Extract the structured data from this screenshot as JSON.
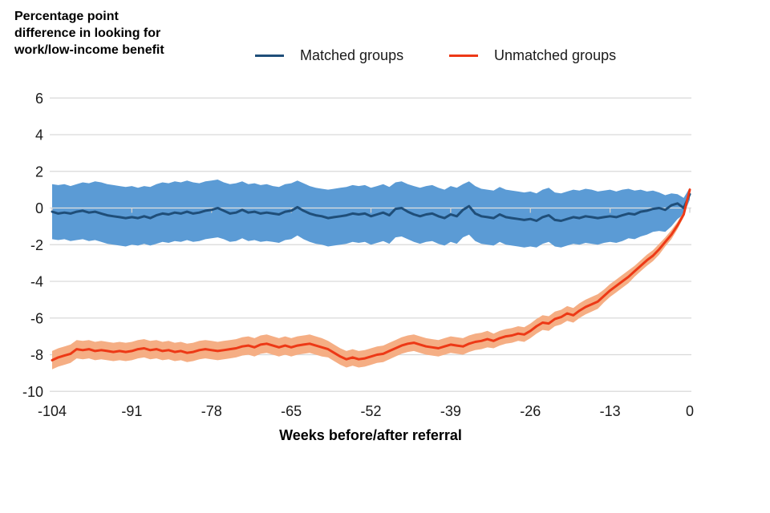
{
  "header": {
    "y_axis_title": "Percentage point\ndifference in looking for\nwork/low-income benefit"
  },
  "legend": {
    "items": [
      {
        "label": "Matched groups",
        "color": "#1F4E79"
      },
      {
        "label": "Unmatched groups",
        "color": "#ED3916"
      }
    ]
  },
  "colors": {
    "gridline": "#D9D9D9",
    "zero_line": "#E0E0E0",
    "axis_tick": "#CFCFCF",
    "text": "#1a1a1a",
    "matched_line": "#1F4E79",
    "matched_band": "#5B9BD5",
    "unmatched_line": "#ED3916",
    "unmatched_band": "#F5AE84"
  },
  "chart_data": {
    "type": "line",
    "title": "Percentage point difference in looking for work/low-income benefit",
    "xlabel": "Weeks before/after referral",
    "ylabel": "Percentage point difference in looking for work/low-income benefit",
    "xlim": [
      -104,
      0
    ],
    "ylim": [
      -10,
      6
    ],
    "x_ticks": [
      -104,
      -91,
      -78,
      -65,
      -52,
      -39,
      -26,
      -13,
      0
    ],
    "y_ticks": [
      6,
      4,
      2,
      0,
      -2,
      -4,
      -6,
      -8,
      -10
    ],
    "grid": "horizontal",
    "legend_position": "top",
    "x": [
      -104,
      -103,
      -102,
      -101,
      -100,
      -99,
      -98,
      -97,
      -96,
      -95,
      -94,
      -93,
      -92,
      -91,
      -90,
      -89,
      -88,
      -87,
      -86,
      -85,
      -84,
      -83,
      -82,
      -81,
      -80,
      -79,
      -78,
      -77,
      -76,
      -75,
      -74,
      -73,
      -72,
      -71,
      -70,
      -69,
      -68,
      -67,
      -66,
      -65,
      -64,
      -63,
      -62,
      -61,
      -60,
      -59,
      -58,
      -57,
      -56,
      -55,
      -54,
      -53,
      -52,
      -51,
      -50,
      -49,
      -48,
      -47,
      -46,
      -45,
      -44,
      -43,
      -42,
      -41,
      -40,
      -39,
      -38,
      -37,
      -36,
      -35,
      -34,
      -33,
      -32,
      -31,
      -30,
      -29,
      -28,
      -27,
      -26,
      -25,
      -24,
      -23,
      -22,
      -21,
      -20,
      -19,
      -18,
      -17,
      -16,
      -15,
      -14,
      -13,
      -12,
      -11,
      -10,
      -9,
      -8,
      -7,
      -6,
      -5,
      -4,
      -3,
      -2,
      -1,
      0
    ],
    "series": [
      {
        "name": "Matched groups",
        "color": "#1F4E79",
        "band_color": "#5B9BD5",
        "values": [
          -0.2,
          -0.3,
          -0.25,
          -0.3,
          -0.2,
          -0.15,
          -0.25,
          -0.2,
          -0.3,
          -0.4,
          -0.45,
          -0.5,
          -0.55,
          -0.5,
          -0.55,
          -0.45,
          -0.55,
          -0.4,
          -0.3,
          -0.35,
          -0.25,
          -0.3,
          -0.2,
          -0.3,
          -0.25,
          -0.15,
          -0.1,
          0.0,
          -0.15,
          -0.3,
          -0.25,
          -0.1,
          -0.25,
          -0.2,
          -0.3,
          -0.25,
          -0.3,
          -0.35,
          -0.2,
          -0.15,
          0.05,
          -0.15,
          -0.3,
          -0.4,
          -0.45,
          -0.55,
          -0.5,
          -0.45,
          -0.4,
          -0.3,
          -0.35,
          -0.3,
          -0.45,
          -0.35,
          -0.25,
          -0.4,
          -0.05,
          0.0,
          -0.2,
          -0.35,
          -0.45,
          -0.35,
          -0.3,
          -0.45,
          -0.55,
          -0.35,
          -0.45,
          -0.1,
          0.1,
          -0.3,
          -0.45,
          -0.5,
          -0.55,
          -0.35,
          -0.5,
          -0.55,
          -0.6,
          -0.65,
          -0.6,
          -0.7,
          -0.5,
          -0.4,
          -0.65,
          -0.7,
          -0.6,
          -0.5,
          -0.55,
          -0.45,
          -0.5,
          -0.55,
          -0.5,
          -0.45,
          -0.5,
          -0.4,
          -0.3,
          -0.35,
          -0.2,
          -0.15,
          -0.05,
          0.0,
          -0.1,
          0.15,
          0.25,
          0.0,
          0.75
        ],
        "upper": [
          1.3,
          1.25,
          1.3,
          1.2,
          1.3,
          1.4,
          1.35,
          1.45,
          1.4,
          1.3,
          1.25,
          1.2,
          1.15,
          1.2,
          1.1,
          1.2,
          1.15,
          1.3,
          1.4,
          1.35,
          1.45,
          1.4,
          1.5,
          1.4,
          1.35,
          1.45,
          1.5,
          1.55,
          1.4,
          1.3,
          1.35,
          1.45,
          1.3,
          1.35,
          1.25,
          1.3,
          1.2,
          1.15,
          1.3,
          1.35,
          1.5,
          1.35,
          1.2,
          1.1,
          1.05,
          1.0,
          1.05,
          1.1,
          1.15,
          1.25,
          1.2,
          1.25,
          1.1,
          1.2,
          1.3,
          1.15,
          1.4,
          1.45,
          1.3,
          1.2,
          1.1,
          1.2,
          1.25,
          1.1,
          1.0,
          1.2,
          1.1,
          1.3,
          1.45,
          1.2,
          1.05,
          1.0,
          0.95,
          1.15,
          1.0,
          0.95,
          0.9,
          0.85,
          0.9,
          0.8,
          1.0,
          1.1,
          0.85,
          0.8,
          0.9,
          1.0,
          0.95,
          1.05,
          1.0,
          0.9,
          0.95,
          1.0,
          0.9,
          1.0,
          1.05,
          0.95,
          1.0,
          0.9,
          0.95,
          0.85,
          0.7,
          0.8,
          0.75,
          0.55,
          1.1
        ],
        "lower": [
          -1.7,
          -1.75,
          -1.7,
          -1.8,
          -1.75,
          -1.7,
          -1.8,
          -1.75,
          -1.85,
          -1.95,
          -2.0,
          -2.05,
          -2.1,
          -2.0,
          -2.05,
          -1.95,
          -2.05,
          -1.95,
          -1.85,
          -1.9,
          -1.8,
          -1.85,
          -1.75,
          -1.85,
          -1.8,
          -1.7,
          -1.65,
          -1.6,
          -1.7,
          -1.85,
          -1.8,
          -1.65,
          -1.8,
          -1.75,
          -1.85,
          -1.8,
          -1.85,
          -1.9,
          -1.75,
          -1.7,
          -1.5,
          -1.7,
          -1.85,
          -1.95,
          -2.0,
          -2.1,
          -2.05,
          -2.0,
          -1.95,
          -1.85,
          -1.9,
          -1.85,
          -2.0,
          -1.9,
          -1.8,
          -1.95,
          -1.6,
          -1.55,
          -1.7,
          -1.85,
          -1.95,
          -1.85,
          -1.8,
          -1.95,
          -2.05,
          -1.85,
          -1.95,
          -1.6,
          -1.45,
          -1.8,
          -1.95,
          -2.0,
          -2.05,
          -1.85,
          -2.0,
          -2.05,
          -2.1,
          -2.15,
          -2.1,
          -2.15,
          -1.95,
          -1.85,
          -2.1,
          -2.15,
          -2.05,
          -1.95,
          -2.0,
          -1.9,
          -1.95,
          -2.0,
          -1.9,
          -1.85,
          -1.9,
          -1.8,
          -1.65,
          -1.7,
          -1.55,
          -1.45,
          -1.3,
          -1.25,
          -1.3,
          -1.0,
          -0.6,
          -0.35,
          0.45
        ]
      },
      {
        "name": "Unmatched groups",
        "color": "#ED3916",
        "band_color": "#F5AE84",
        "values": [
          -8.3,
          -8.15,
          -8.05,
          -7.95,
          -7.7,
          -7.75,
          -7.7,
          -7.8,
          -7.75,
          -7.8,
          -7.85,
          -7.8,
          -7.85,
          -7.8,
          -7.7,
          -7.65,
          -7.75,
          -7.7,
          -7.8,
          -7.75,
          -7.85,
          -7.8,
          -7.9,
          -7.85,
          -7.75,
          -7.7,
          -7.75,
          -7.8,
          -7.75,
          -7.7,
          -7.65,
          -7.55,
          -7.5,
          -7.6,
          -7.45,
          -7.4,
          -7.5,
          -7.6,
          -7.5,
          -7.6,
          -7.5,
          -7.45,
          -7.4,
          -7.5,
          -7.6,
          -7.7,
          -7.9,
          -8.1,
          -8.25,
          -8.15,
          -8.25,
          -8.2,
          -8.1,
          -8.0,
          -7.95,
          -7.8,
          -7.65,
          -7.5,
          -7.4,
          -7.35,
          -7.45,
          -7.55,
          -7.6,
          -7.65,
          -7.55,
          -7.45,
          -7.5,
          -7.55,
          -7.4,
          -7.3,
          -7.25,
          -7.15,
          -7.25,
          -7.1,
          -7.0,
          -6.95,
          -6.85,
          -6.9,
          -6.7,
          -6.45,
          -6.25,
          -6.3,
          -6.05,
          -5.95,
          -5.75,
          -5.85,
          -5.6,
          -5.4,
          -5.25,
          -5.1,
          -4.8,
          -4.5,
          -4.25,
          -4.0,
          -3.75,
          -3.45,
          -3.15,
          -2.85,
          -2.6,
          -2.25,
          -1.85,
          -1.45,
          -0.95,
          -0.35,
          1.0
        ],
        "band_half_width": [
          0.5,
          0.5,
          0.5,
          0.5,
          0.5,
          0.5,
          0.5,
          0.5,
          0.5,
          0.5,
          0.5,
          0.5,
          0.5,
          0.5,
          0.5,
          0.5,
          0.5,
          0.5,
          0.5,
          0.5,
          0.5,
          0.5,
          0.5,
          0.5,
          0.5,
          0.5,
          0.5,
          0.5,
          0.5,
          0.5,
          0.5,
          0.5,
          0.5,
          0.5,
          0.5,
          0.5,
          0.5,
          0.5,
          0.5,
          0.5,
          0.5,
          0.5,
          0.5,
          0.5,
          0.5,
          0.45,
          0.45,
          0.45,
          0.45,
          0.45,
          0.45,
          0.45,
          0.45,
          0.45,
          0.45,
          0.45,
          0.45,
          0.45,
          0.45,
          0.45,
          0.45,
          0.45,
          0.45,
          0.45,
          0.45,
          0.45,
          0.45,
          0.45,
          0.45,
          0.45,
          0.45,
          0.45,
          0.4,
          0.4,
          0.4,
          0.4,
          0.4,
          0.4,
          0.4,
          0.4,
          0.4,
          0.4,
          0.4,
          0.4,
          0.4,
          0.4,
          0.4,
          0.4,
          0.4,
          0.4,
          0.35,
          0.35,
          0.35,
          0.35,
          0.35,
          0.3,
          0.3,
          0.3,
          0.3,
          0.3,
          0.25,
          0.25,
          0.2,
          0.15,
          0.1
        ]
      }
    ]
  }
}
